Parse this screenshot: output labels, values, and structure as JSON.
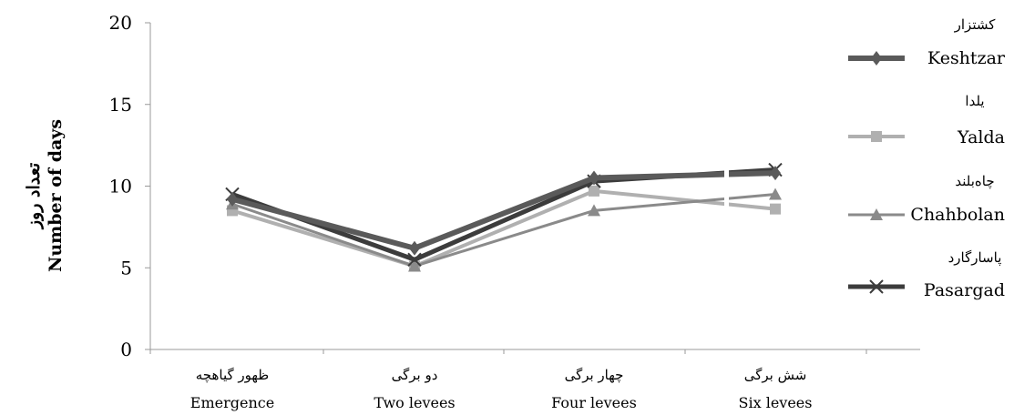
{
  "chart_data": {
    "type": "line",
    "title": "",
    "ylabel_fa": "تعداد روز",
    "ylabel": "Number of days",
    "xlabel": "",
    "ylim": [
      0,
      20
    ],
    "yticks": [
      "0",
      "5",
      "10",
      "15",
      "20"
    ],
    "categories": [
      {
        "fa": "ظهور گیاهچه",
        "en": "Emergence"
      },
      {
        "fa": "دو برگی",
        "en": "Two levees"
      },
      {
        "fa": "چهار برگی",
        "en": "Four levees"
      },
      {
        "fa": "شش برگی",
        "en": "Six levees"
      }
    ],
    "series": [
      {
        "name_fa": "کشتزار",
        "name": "Keshtzar",
        "marker": "diamond",
        "color": "#5a5a5a",
        "values": [
          9.2,
          6.2,
          10.5,
          10.8
        ]
      },
      {
        "name_fa": "یلدا",
        "name": "Yalda",
        "marker": "square",
        "color": "#b0b0b0",
        "values": [
          8.5,
          5.1,
          9.7,
          8.6
        ]
      },
      {
        "name_fa": "چاه‌بلند",
        "name": "Chahbolan",
        "marker": "triangle",
        "color": "#8a8a8a",
        "values": [
          8.9,
          5.1,
          8.5,
          9.5
        ]
      },
      {
        "name_fa": "پاسارگارد",
        "name": "Pasargad",
        "marker": "x",
        "color": "#3c3c3c",
        "values": [
          9.5,
          5.5,
          10.3,
          11.0
        ]
      }
    ],
    "grid": false,
    "legend": "right"
  }
}
